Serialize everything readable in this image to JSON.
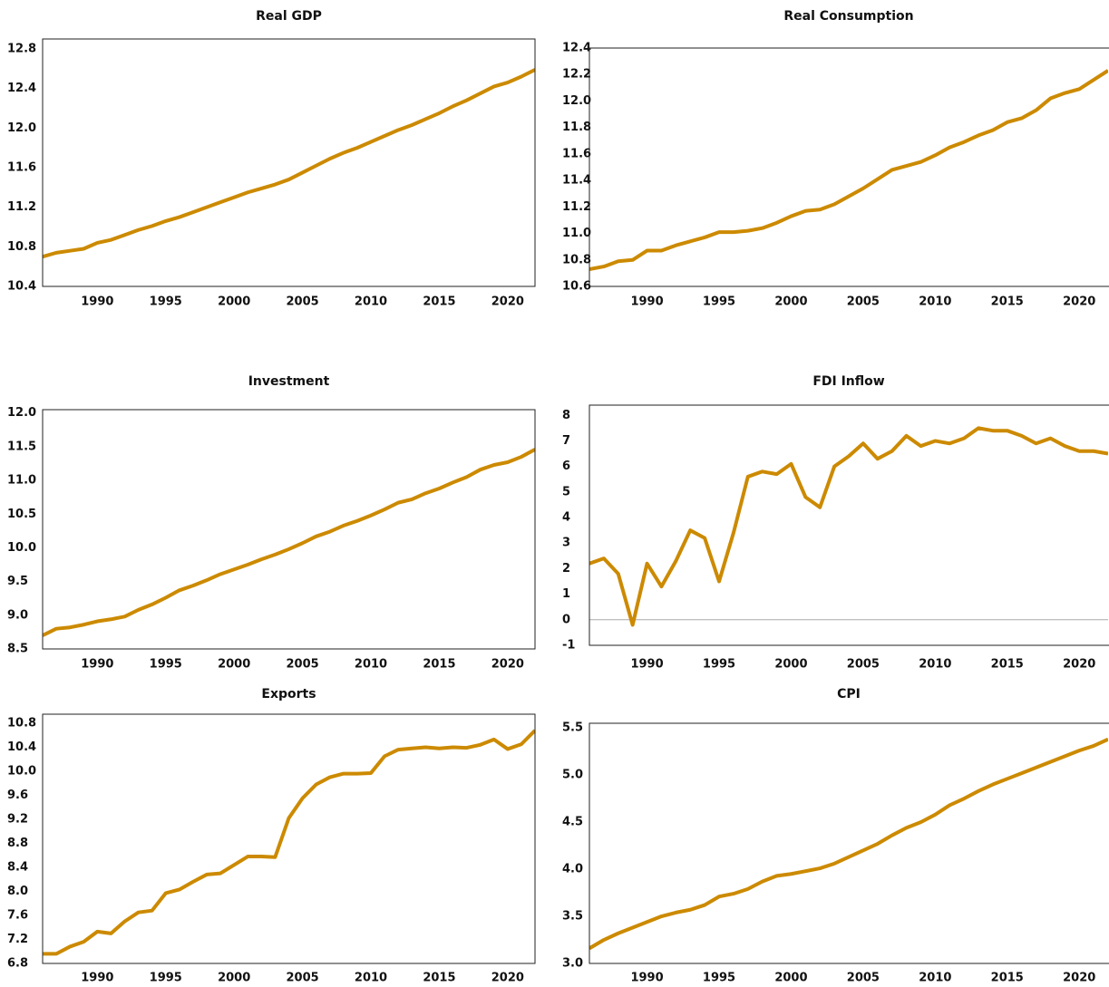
{
  "chart_data": [
    {
      "type": "line",
      "title": "Real GDP",
      "x": [
        1986,
        1987,
        1988,
        1989,
        1990,
        1991,
        1992,
        1993,
        1994,
        1995,
        1996,
        1997,
        1998,
        1999,
        2000,
        2001,
        2002,
        2003,
        2004,
        2005,
        2006,
        2007,
        2008,
        2009,
        2010,
        2011,
        2012,
        2013,
        2014,
        2015,
        2016,
        2017,
        2018,
        2019,
        2020,
        2021,
        2022
      ],
      "series": [
        {
          "color": "#cc8a00",
          "values": [
            10.7,
            10.74,
            10.76,
            10.78,
            10.84,
            10.87,
            10.92,
            10.97,
            11.01,
            11.06,
            11.1,
            11.15,
            11.2,
            11.25,
            11.3,
            11.35,
            11.39,
            11.43,
            11.48,
            11.55,
            11.62,
            11.69,
            11.75,
            11.8,
            11.86,
            11.92,
            11.98,
            12.03,
            12.09,
            12.15,
            12.22,
            12.28,
            12.35,
            12.42,
            12.46,
            12.52,
            12.59
          ]
        }
      ],
      "xlim": [
        1986,
        2022
      ],
      "xticks": [
        1990,
        1995,
        2000,
        2005,
        2010,
        2015,
        2020
      ],
      "ylim": [
        10.4,
        12.9
      ],
      "yticks": [
        10.4,
        10.8,
        {
          "value": 11.2,
          "label": "11.2"
        },
        11.6,
        {
          "value": 12,
          "label": "12.0"
        },
        12.4,
        12.8
      ]
    },
    {
      "type": "line",
      "title": "Real Consumption",
      "x": [
        1986,
        1987,
        1988,
        1989,
        1990,
        1991,
        1992,
        1993,
        1994,
        1995,
        1996,
        1997,
        1998,
        1999,
        2000,
        2001,
        2002,
        2003,
        2004,
        2005,
        2006,
        2007,
        2008,
        2009,
        2010,
        2011,
        2012,
        2013,
        2014,
        2015,
        2016,
        2017,
        2018,
        2019,
        2020,
        2021,
        2022
      ],
      "series": [
        {
          "color": "#cc8a00",
          "values": [
            10.73,
            10.75,
            10.79,
            10.8,
            10.87,
            10.87,
            10.91,
            10.94,
            10.97,
            11.01,
            11.01,
            11.02,
            11.04,
            11.08,
            11.13,
            11.17,
            11.18,
            11.22,
            11.28,
            11.34,
            11.41,
            11.48,
            11.51,
            11.54,
            11.59,
            11.65,
            11.69,
            11.74,
            11.78,
            11.84,
            11.87,
            11.93,
            12.02,
            12.06,
            12.09,
            12.16,
            12.23
          ]
        }
      ],
      "xlim": [
        1986,
        2022
      ],
      "xticks": [
        1990,
        1995,
        2000,
        2005,
        2010,
        2015,
        2020
      ],
      "ylim": [
        10.6,
        12.4
      ],
      "yticks": [
        10.6,
        10.8,
        {
          "value": 11,
          "label": "11.0"
        },
        11.2,
        11.4,
        11.6,
        11.8,
        {
          "value": 12,
          "label": "12.0"
        },
        12.2,
        12.4
      ]
    },
    {
      "type": "line",
      "title": "Investment",
      "x": [
        1986,
        1987,
        1988,
        1989,
        1990,
        1991,
        1992,
        1993,
        1994,
        1995,
        1996,
        1997,
        1998,
        1999,
        2000,
        2001,
        2002,
        2003,
        2004,
        2005,
        2006,
        2007,
        2008,
        2009,
        2010,
        2011,
        2012,
        2013,
        2014,
        2015,
        2016,
        2017,
        2018,
        2019,
        2020,
        2021,
        2022
      ],
      "series": [
        {
          "color": "#cc8a00",
          "values": [
            8.7,
            8.8,
            8.82,
            8.86,
            8.91,
            8.94,
            8.98,
            9.08,
            9.16,
            9.26,
            9.37,
            9.44,
            9.52,
            9.61,
            9.68,
            9.75,
            9.83,
            9.9,
            9.98,
            10.07,
            10.17,
            10.24,
            10.33,
            10.4,
            10.48,
            10.57,
            10.67,
            10.72,
            10.81,
            10.88,
            10.97,
            11.05,
            11.16,
            11.23,
            11.27,
            11.35,
            11.46
          ]
        }
      ],
      "xlim": [
        1986,
        2022
      ],
      "xticks": [
        1990,
        1995,
        2000,
        2005,
        2010,
        2015,
        2020
      ],
      "ylim": [
        8.5,
        12.05
      ],
      "yticks": [
        8.5,
        {
          "value": 9,
          "label": "9.0"
        },
        9.5,
        {
          "value": 10,
          "label": "10.0"
        },
        10.5,
        {
          "value": 11,
          "label": "11.0"
        },
        11.5,
        {
          "value": 12,
          "label": "12.0"
        }
      ]
    },
    {
      "type": "line",
      "title": "FDI Inflow",
      "x": [
        1986,
        1987,
        1988,
        1989,
        1990,
        1991,
        1992,
        1993,
        1994,
        1995,
        1996,
        1997,
        1998,
        1999,
        2000,
        2001,
        2002,
        2003,
        2004,
        2005,
        2006,
        2007,
        2008,
        2009,
        2010,
        2011,
        2012,
        2013,
        2014,
        2015,
        2016,
        2017,
        2018,
        2019,
        2020,
        2021,
        2022
      ],
      "series": [
        {
          "color": "#cc8a00",
          "values": [
            2.2,
            2.4,
            1.8,
            -0.2,
            2.2,
            1.3,
            2.3,
            3.5,
            3.2,
            1.5,
            3.4,
            5.6,
            5.8,
            5.7,
            6.1,
            4.8,
            4.4,
            6.0,
            6.4,
            6.9,
            6.3,
            6.6,
            7.2,
            6.8,
            7.0,
            6.9,
            7.1,
            7.5,
            7.4,
            7.4,
            7.2,
            6.9,
            7.1,
            6.8,
            6.6,
            6.6,
            6.5
          ]
        }
      ],
      "xlim": [
        1986,
        2022
      ],
      "xticks": [
        1990,
        1995,
        2000,
        2005,
        2010,
        2015,
        2020
      ],
      "ylim": [
        -1,
        8.4
      ],
      "yticks": [
        -1,
        0,
        1,
        2,
        3,
        4,
        5,
        6,
        7,
        8
      ],
      "zero_line": true
    },
    {
      "type": "line",
      "title": "Exports",
      "x": [
        1986,
        1987,
        1988,
        1989,
        1990,
        1991,
        1992,
        1993,
        1994,
        1995,
        1996,
        1997,
        1998,
        1999,
        2000,
        2001,
        2002,
        2003,
        2004,
        2005,
        2006,
        2007,
        2008,
        2009,
        2010,
        2011,
        2012,
        2013,
        2014,
        2015,
        2016,
        2017,
        2018,
        2019,
        2020,
        2021,
        2022
      ],
      "series": [
        {
          "color": "#cc8a00",
          "values": [
            6.96,
            6.96,
            7.08,
            7.16,
            7.33,
            7.3,
            7.5,
            7.65,
            7.68,
            7.97,
            8.03,
            8.16,
            8.28,
            8.3,
            8.44,
            8.58,
            8.58,
            8.57,
            9.22,
            9.55,
            9.78,
            9.9,
            9.96,
            9.96,
            9.97,
            10.25,
            10.36,
            10.38,
            10.4,
            10.38,
            10.4,
            10.39,
            10.44,
            10.53,
            10.37,
            10.45,
            10.68
          ]
        }
      ],
      "xlim": [
        1986,
        2022
      ],
      "xticks": [
        1990,
        1995,
        2000,
        2005,
        2010,
        2015,
        2020
      ],
      "ylim": [
        6.8,
        10.95
      ],
      "yticks": [
        6.8,
        7.2,
        7.6,
        {
          "value": 8,
          "label": "8.0"
        },
        8.4,
        8.8,
        9.2,
        9.6,
        {
          "value": 10,
          "label": "10.0"
        },
        10.4,
        10.8
      ]
    },
    {
      "type": "line",
      "title": "CPI",
      "x": [
        1986,
        1987,
        1988,
        1989,
        1990,
        1991,
        1992,
        1993,
        1994,
        1995,
        1996,
        1997,
        1998,
        1999,
        2000,
        2001,
        2002,
        2003,
        2004,
        2005,
        2006,
        2007,
        2008,
        2009,
        2010,
        2011,
        2012,
        2013,
        2014,
        2015,
        2016,
        2017,
        2018,
        2019,
        2020,
        2021,
        2022
      ],
      "series": [
        {
          "color": "#cc8a00",
          "values": [
            3.16,
            3.25,
            3.32,
            3.38,
            3.44,
            3.5,
            3.54,
            3.57,
            3.62,
            3.71,
            3.74,
            3.79,
            3.87,
            3.93,
            3.95,
            3.98,
            4.01,
            4.06,
            4.13,
            4.2,
            4.27,
            4.36,
            4.44,
            4.5,
            4.58,
            4.68,
            4.75,
            4.83,
            4.9,
            4.96,
            5.02,
            5.08,
            5.14,
            5.2,
            5.26,
            5.31,
            5.38
          ]
        }
      ],
      "xlim": [
        1986,
        2022
      ],
      "xticks": [
        1990,
        1995,
        2000,
        2005,
        2010,
        2015,
        2020
      ],
      "ylim": [
        3.0,
        5.55
      ],
      "yticks": [
        {
          "value": 3,
          "label": "3.0"
        },
        3.5,
        {
          "value": 4,
          "label": "4.0"
        },
        4.5,
        {
          "value": 5,
          "label": "5.0"
        },
        5.5
      ]
    }
  ]
}
